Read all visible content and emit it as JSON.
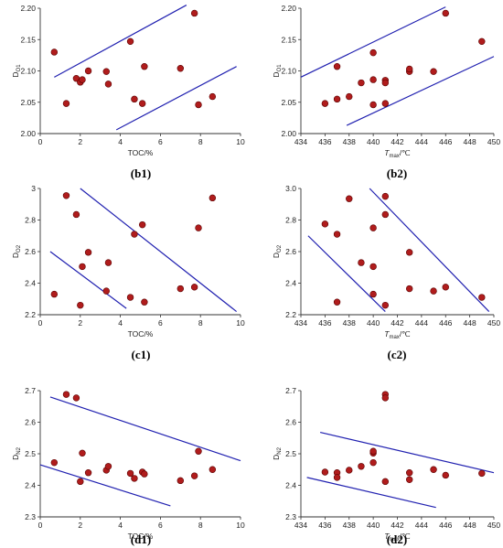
{
  "figure": {
    "marker_color": "#b01c1c",
    "marker_edge": "#5a0000",
    "trend_color": "#2020b0",
    "x_toc_label": "TOC/%",
    "x_tmax_label_main": "T",
    "x_tmax_label_sub": "max",
    "x_tmax_label_unit": "/℃"
  },
  "chart_data": [
    {
      "panel": "(b1)",
      "type": "scatter",
      "ylabel_main": "D",
      "ylabel_sub": "O1",
      "xlim": [
        0,
        10
      ],
      "ylim": [
        2.0,
        2.2
      ],
      "xticks": [
        "0",
        "2",
        "4",
        "6",
        "8",
        "10"
      ],
      "yticks": [
        "2.00",
        "2.05",
        "2.10",
        "2.15",
        "2.20"
      ],
      "points": [
        [
          0.7,
          2.13
        ],
        [
          1.3,
          2.048
        ],
        [
          1.8,
          2.088
        ],
        [
          2.0,
          2.082
        ],
        [
          2.1,
          2.086
        ],
        [
          2.4,
          2.1
        ],
        [
          3.3,
          2.099
        ],
        [
          3.4,
          2.079
        ],
        [
          4.5,
          2.147
        ],
        [
          4.7,
          2.055
        ],
        [
          5.1,
          2.048
        ],
        [
          5.2,
          2.107
        ],
        [
          7.0,
          2.104
        ],
        [
          7.7,
          2.192
        ],
        [
          7.9,
          2.046
        ],
        [
          8.6,
          2.059
        ]
      ],
      "lines": [
        [
          [
            0.7,
            2.09
          ],
          [
            7.3,
            2.205
          ]
        ],
        [
          [
            3.8,
            2.006
          ],
          [
            9.8,
            2.107
          ]
        ]
      ]
    },
    {
      "panel": "(b2)",
      "type": "scatter",
      "ylabel_main": "D",
      "ylabel_sub": "O1",
      "xlim": [
        434,
        450
      ],
      "ylim": [
        2.0,
        2.2
      ],
      "xticks": [
        "434",
        "436",
        "438",
        "440",
        "442",
        "444",
        "446",
        "448",
        "450"
      ],
      "yticks": [
        "2.00",
        "2.05",
        "2.10",
        "2.15",
        "2.20"
      ],
      "points": [
        [
          436,
          2.048
        ],
        [
          437,
          2.055
        ],
        [
          437,
          2.107
        ],
        [
          438,
          2.059
        ],
        [
          439,
          2.081
        ],
        [
          440,
          2.046
        ],
        [
          440,
          2.086
        ],
        [
          440,
          2.129
        ],
        [
          441,
          2.085
        ],
        [
          441,
          2.081
        ],
        [
          441,
          2.048
        ],
        [
          443,
          2.099
        ],
        [
          443,
          2.103
        ],
        [
          445,
          2.099
        ],
        [
          446,
          2.192
        ],
        [
          449,
          2.147
        ]
      ],
      "lines": [
        [
          [
            434.0,
            2.09
          ],
          [
            446.0,
            2.202
          ]
        ],
        [
          [
            437.8,
            2.013
          ],
          [
            450.0,
            2.123
          ]
        ]
      ]
    },
    {
      "panel": "(c1)",
      "type": "scatter",
      "ylabel_main": "D",
      "ylabel_sub": "O2",
      "xlim": [
        0,
        10
      ],
      "ylim": [
        2.2,
        3.0
      ],
      "xticks": [
        "0",
        "2",
        "4",
        "6",
        "8",
        "10"
      ],
      "yticks": [
        "2.2",
        "2.4",
        "2.6",
        "2.8",
        "3"
      ],
      "points": [
        [
          0.7,
          2.33
        ],
        [
          1.3,
          2.955
        ],
        [
          1.8,
          2.835
        ],
        [
          2.0,
          2.26
        ],
        [
          2.1,
          2.505
        ],
        [
          2.4,
          2.595
        ],
        [
          3.3,
          2.35
        ],
        [
          3.4,
          2.53
        ],
        [
          4.5,
          2.31
        ],
        [
          4.7,
          2.71
        ],
        [
          5.1,
          2.77
        ],
        [
          5.2,
          2.28
        ],
        [
          7.0,
          2.365
        ],
        [
          7.7,
          2.375
        ],
        [
          7.9,
          2.75
        ],
        [
          8.6,
          2.94
        ]
      ],
      "lines": [
        [
          [
            0.5,
            2.6
          ],
          [
            4.3,
            2.24
          ]
        ],
        [
          [
            2.0,
            3.0
          ],
          [
            9.8,
            2.22
          ]
        ]
      ]
    },
    {
      "panel": "(c2)",
      "type": "scatter",
      "ylabel_main": "D",
      "ylabel_sub": "O2",
      "xlim": [
        434,
        450
      ],
      "ylim": [
        2.2,
        3.0
      ],
      "xticks": [
        "434",
        "436",
        "438",
        "440",
        "442",
        "444",
        "446",
        "448",
        "450"
      ],
      "yticks": [
        "2.2",
        "2.4",
        "2.6",
        "2.8",
        "3.0"
      ],
      "points": [
        [
          436,
          2.775
        ],
        [
          437,
          2.71
        ],
        [
          437,
          2.28
        ],
        [
          438,
          2.935
        ],
        [
          439,
          2.53
        ],
        [
          440,
          2.75
        ],
        [
          440,
          2.505
        ],
        [
          440,
          2.33
        ],
        [
          441,
          2.95
        ],
        [
          441,
          2.835
        ],
        [
          441,
          2.26
        ],
        [
          443,
          2.595
        ],
        [
          443,
          2.365
        ],
        [
          445,
          2.35
        ],
        [
          446,
          2.375
        ],
        [
          449,
          2.31
        ]
      ],
      "lines": [
        [
          [
            434.6,
            2.7
          ],
          [
            441.0,
            2.22
          ]
        ],
        [
          [
            439.7,
            3.0
          ],
          [
            449.6,
            2.22
          ]
        ]
      ]
    },
    {
      "panel": "(d1)",
      "type": "scatter",
      "ylabel_main": "D",
      "ylabel_sub": "N2",
      "xlim": [
        0,
        10
      ],
      "ylim": [
        2.3,
        2.7
      ],
      "xticks": [
        "0",
        "2",
        "4",
        "6",
        "8",
        "10"
      ],
      "yticks": [
        "2.3",
        "2.4",
        "2.5",
        "2.6",
        "2.7"
      ],
      "points": [
        [
          0.7,
          2.472
        ],
        [
          1.3,
          2.688
        ],
        [
          1.8,
          2.677
        ],
        [
          2.0,
          2.412
        ],
        [
          2.1,
          2.502
        ],
        [
          2.4,
          2.44
        ],
        [
          3.3,
          2.448
        ],
        [
          3.4,
          2.46
        ],
        [
          4.5,
          2.438
        ],
        [
          4.7,
          2.422
        ],
        [
          5.1,
          2.442
        ],
        [
          5.2,
          2.436
        ],
        [
          7.0,
          2.415
        ],
        [
          7.7,
          2.43
        ],
        [
          7.9,
          2.508
        ],
        [
          8.6,
          2.45
        ]
      ],
      "lines": [
        [
          [
            0.5,
            2.68
          ],
          [
            10.0,
            2.478
          ]
        ],
        [
          [
            0.0,
            2.465
          ],
          [
            6.5,
            2.335
          ]
        ]
      ]
    },
    {
      "panel": "(d2)",
      "type": "scatter",
      "ylabel_main": "D",
      "ylabel_sub": "N2",
      "xlim": [
        434,
        450
      ],
      "ylim": [
        2.3,
        2.7
      ],
      "xticks": [
        "434",
        "436",
        "438",
        "440",
        "442",
        "444",
        "446",
        "448",
        "450"
      ],
      "yticks": [
        "2.3",
        "2.4",
        "2.5",
        "2.6",
        "2.7"
      ],
      "points": [
        [
          436,
          2.442
        ],
        [
          437,
          2.44
        ],
        [
          437,
          2.425
        ],
        [
          438,
          2.448
        ],
        [
          439,
          2.46
        ],
        [
          440,
          2.472
        ],
        [
          440,
          2.502
        ],
        [
          440,
          2.508
        ],
        [
          441,
          2.688
        ],
        [
          441,
          2.677
        ],
        [
          441,
          2.412
        ],
        [
          443,
          2.44
        ],
        [
          443,
          2.418
        ],
        [
          445,
          2.45
        ],
        [
          446,
          2.432
        ],
        [
          449,
          2.438
        ]
      ],
      "lines": [
        [
          [
            435.6,
            2.568
          ],
          [
            450.0,
            2.44
          ]
        ],
        [
          [
            434.5,
            2.425
          ],
          [
            445.2,
            2.33
          ]
        ]
      ]
    }
  ]
}
